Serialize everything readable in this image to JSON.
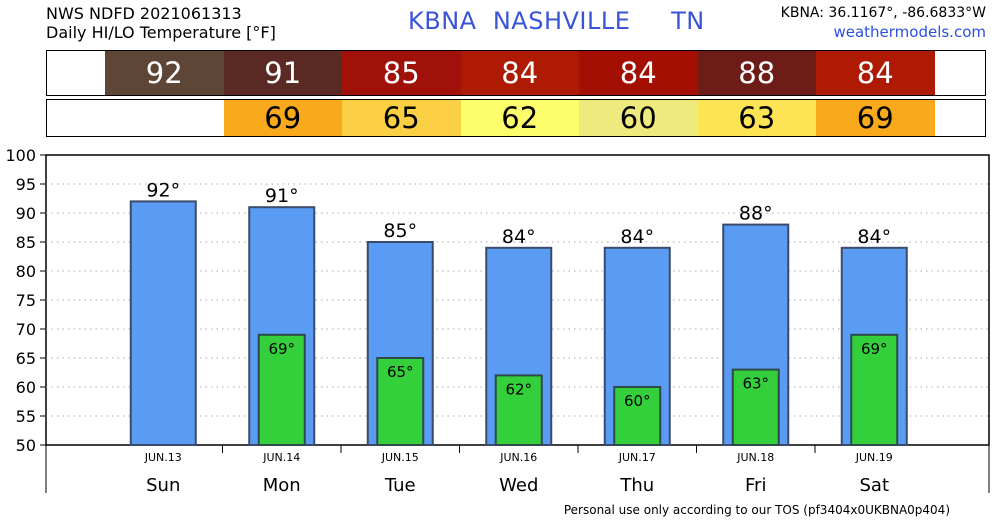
{
  "header": {
    "line1": "NWS NDFD 2021061313",
    "line2": "Daily HI/LO Temperature [°F]",
    "station_code": "KBNA",
    "city": "NASHVILLE",
    "state": "TN",
    "coords": "KBNA: 36.1167°, -86.6833°W",
    "site": "weathermodels.com"
  },
  "hi_strip": [
    {
      "value": "92",
      "color": "#5e4637"
    },
    {
      "value": "91",
      "color": "#5b2a24"
    },
    {
      "value": "85",
      "color": "#a01109"
    },
    {
      "value": "84",
      "color": "#ae1a04"
    },
    {
      "value": "84",
      "color": "#a40f04"
    },
    {
      "value": "88",
      "color": "#6e1c18"
    },
    {
      "value": "84",
      "color": "#ae1a04"
    }
  ],
  "lo_strip": [
    {
      "value": "69",
      "color": "#f8a91c"
    },
    {
      "value": "65",
      "color": "#fcd044"
    },
    {
      "value": "62",
      "color": "#fefe6c"
    },
    {
      "value": "60",
      "color": "#eeea7e"
    },
    {
      "value": "63",
      "color": "#fde455"
    },
    {
      "value": "69",
      "color": "#f8a91c"
    }
  ],
  "chart_data": {
    "type": "bar",
    "categories": [
      "Sun",
      "Mon",
      "Tue",
      "Wed",
      "Thu",
      "Fri",
      "Sat"
    ],
    "dates": [
      "JUN.13",
      "JUN.14",
      "JUN.15",
      "JUN.16",
      "JUN.17",
      "JUN.18",
      "JUN.19"
    ],
    "series": [
      {
        "values": [
          92,
          91,
          85,
          84,
          84,
          88,
          84
        ],
        "labels": [
          "92°",
          "91°",
          "85°",
          "84°",
          "84°",
          "88°",
          "84°"
        ],
        "color": "#5a9cf3"
      },
      {
        "values": [
          null,
          69,
          65,
          62,
          60,
          63,
          69
        ],
        "labels": [
          "",
          "69°",
          "65°",
          "62°",
          "60°",
          "63°",
          "69°"
        ],
        "color": "#33d03c"
      }
    ],
    "ylim": [
      50,
      100
    ],
    "yticks": [
      "100",
      "95",
      "90",
      "85",
      "80",
      "75",
      "70",
      "65",
      "60",
      "55",
      "50"
    ],
    "grid": true
  },
  "footer": "Personal use only according to our TOS (pf3404x0UKBNA0p404)"
}
